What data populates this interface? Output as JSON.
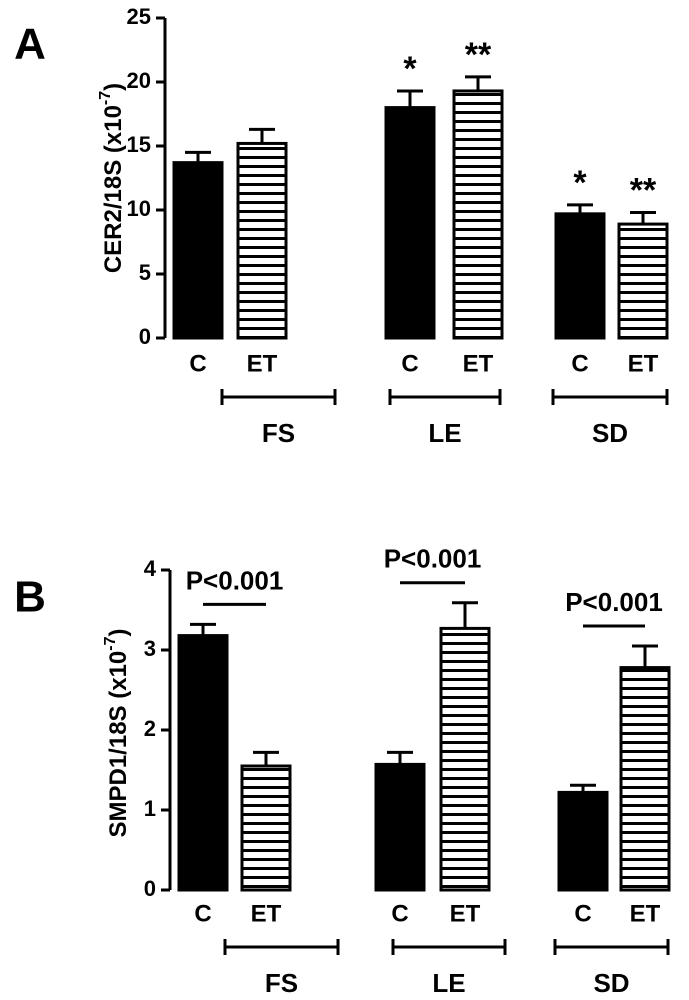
{
  "chart_data": [
    {
      "type": "bar",
      "panel": "A",
      "ylabel": {
        "text": "CER2/18S (x10",
        "sup": "-7",
        "end": ")"
      },
      "categories": [
        "C",
        "ET",
        "C",
        "ET",
        "C",
        "ET"
      ],
      "groups": [
        "FS",
        "LE",
        "SD"
      ],
      "values": [
        13.7,
        15.2,
        18.0,
        19.3,
        9.7,
        8.9
      ],
      "errors": [
        0.8,
        1.1,
        1.3,
        1.1,
        0.7,
        0.9
      ],
      "bar_styles": [
        "solid",
        "striped",
        "solid",
        "striped",
        "solid",
        "striped"
      ],
      "annotations": [
        null,
        null,
        "*",
        "**",
        "*",
        "**"
      ],
      "color": "#000000",
      "ylim": [
        0,
        25
      ],
      "yticks": [
        0,
        5,
        10,
        15,
        20,
        25
      ]
    },
    {
      "type": "bar",
      "panel": "B",
      "ylabel": {
        "text": "SMPD1/18S (x10",
        "sup": "-7",
        "end": ")"
      },
      "categories": [
        "C",
        "ET",
        "C",
        "ET",
        "C",
        "ET"
      ],
      "groups": [
        "FS",
        "LE",
        "SD"
      ],
      "values": [
        3.18,
        1.55,
        1.57,
        3.27,
        1.22,
        2.78
      ],
      "errors": [
        0.14,
        0.17,
        0.15,
        0.32,
        0.09,
        0.27
      ],
      "bar_styles": [
        "solid",
        "striped",
        "solid",
        "striped",
        "solid",
        "striped"
      ],
      "group_annotations": [
        "P<0.001",
        "P<0.001",
        "P<0.001"
      ],
      "color": "#000000",
      "ylim": [
        0,
        4
      ],
      "yticks": [
        0,
        1,
        2,
        3,
        4
      ]
    }
  ]
}
